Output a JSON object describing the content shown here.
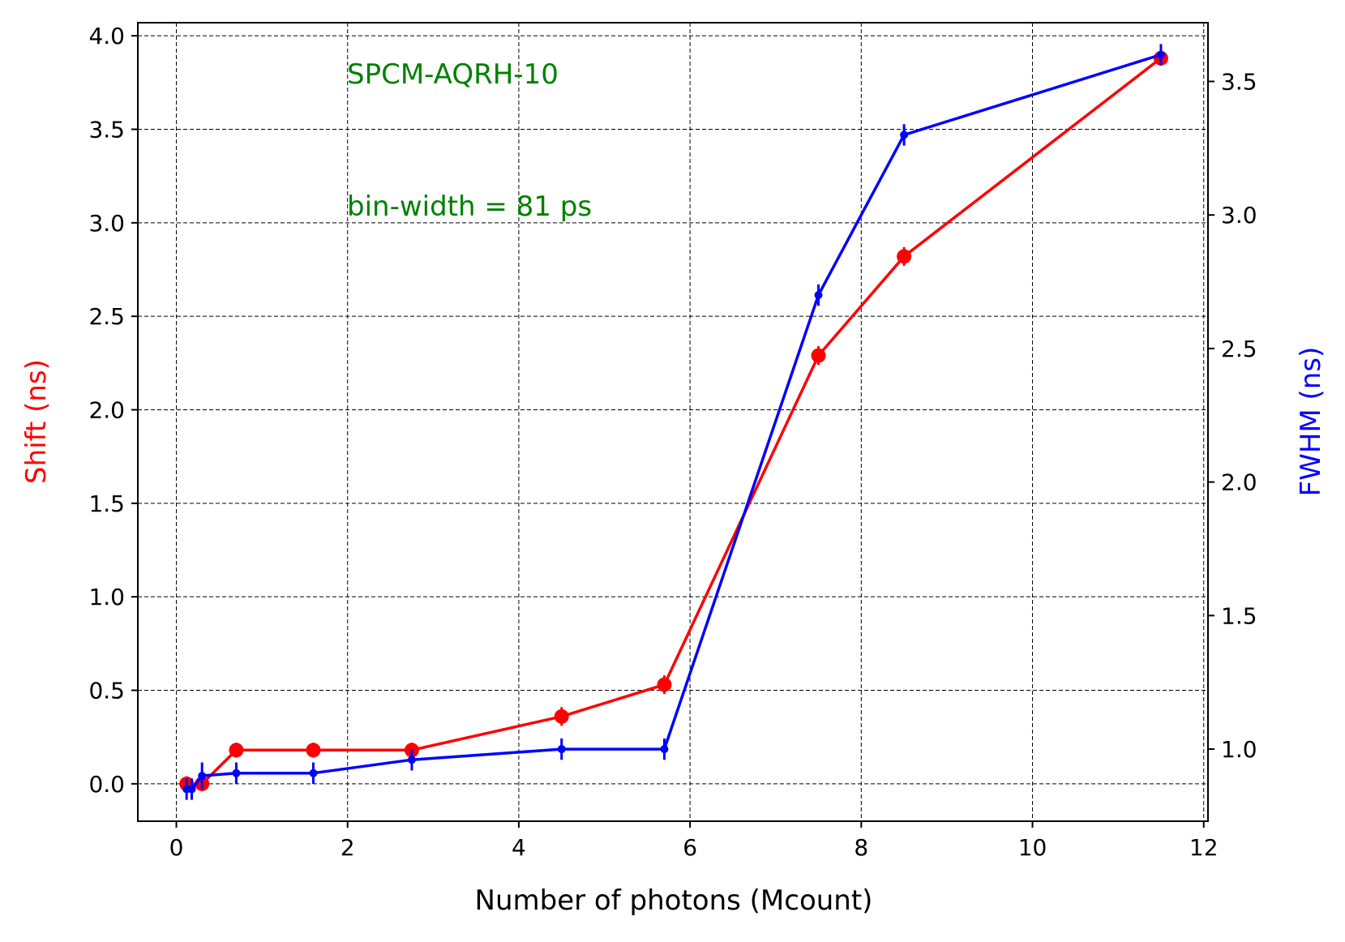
{
  "chart_data": {
    "type": "line",
    "title": "",
    "xlabel": "Number of photons (Mcount)",
    "ylabel_left": "Shift (ns)",
    "ylabel_right": "FWHM (ns)",
    "xlim": [
      -0.45,
      12.05
    ],
    "ylim_left": [
      -0.2,
      4.07
    ],
    "ylim_right": [
      0.73,
      3.72
    ],
    "x_ticks": [
      0,
      2,
      4,
      6,
      8,
      10,
      12
    ],
    "x_tick_labels": [
      "0",
      "2",
      "4",
      "6",
      "8",
      "10",
      "12"
    ],
    "y_left_ticks": [
      0.0,
      0.5,
      1.0,
      1.5,
      2.0,
      2.5,
      3.0,
      3.5,
      4.0
    ],
    "y_left_tick_labels": [
      "0.0",
      "0.5",
      "1.0",
      "1.5",
      "2.0",
      "2.5",
      "3.0",
      "3.5",
      "4.0"
    ],
    "y_right_ticks": [
      1.0,
      1.5,
      2.0,
      2.5,
      3.0,
      3.5
    ],
    "y_right_tick_labels": [
      "1.0",
      "1.5",
      "2.0",
      "2.5",
      "3.0",
      "3.5"
    ],
    "grid": true,
    "annotations": [
      "SPCM-AQRH-10",
      "bin-width = 81 ps"
    ],
    "colors": {
      "shift": "#ff0000",
      "fwhm": "#0000ff",
      "annotation": "#008000",
      "grid": "#000000",
      "axes": "#000000"
    },
    "series": [
      {
        "axis": "left",
        "marker": "circle",
        "x": [
          0.12,
          0.3,
          0.7,
          1.6,
          2.75,
          4.5,
          5.7,
          7.5,
          8.5,
          11.5
        ],
        "y": [
          0.0,
          0.0,
          0.18,
          0.18,
          0.18,
          0.36,
          0.53,
          2.29,
          2.82,
          3.88
        ],
        "yerr": [
          0.04,
          0.04,
          0.04,
          0.04,
          0.04,
          0.05,
          0.05,
          0.05,
          0.05,
          0.04
        ]
      },
      {
        "axis": "right",
        "marker": "point",
        "x": [
          0.12,
          0.18,
          0.3,
          0.7,
          1.6,
          2.75,
          4.5,
          5.7,
          7.5,
          8.5,
          11.5
        ],
        "y": [
          0.85,
          0.85,
          0.9,
          0.91,
          0.91,
          0.96,
          1.0,
          1.0,
          2.7,
          3.3,
          3.6
        ],
        "yerr": [
          0.04,
          0.04,
          0.05,
          0.04,
          0.04,
          0.04,
          0.04,
          0.04,
          0.04,
          0.04,
          0.04
        ]
      }
    ]
  }
}
